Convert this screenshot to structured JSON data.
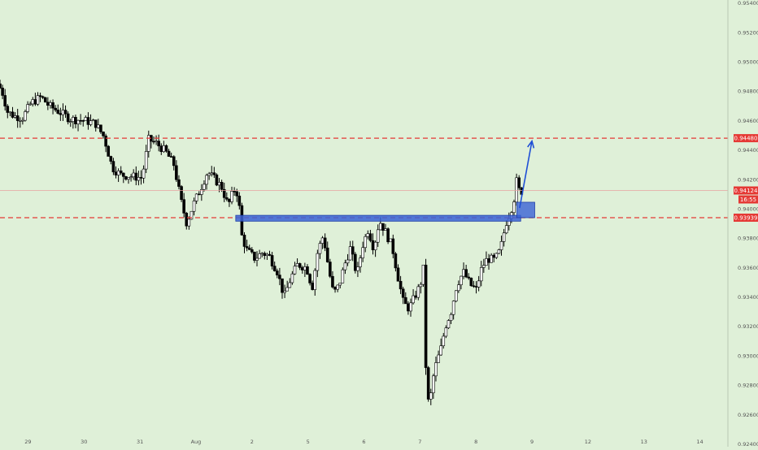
{
  "chart_data": {
    "type": "candlestick",
    "colors": {
      "background": "#dff0d8",
      "candle_up": "#ffffff",
      "candle_down": "#000000",
      "wick": "#000000",
      "resistance_line": "#e53935",
      "support_line": "#e53935",
      "zone": "#3a62d6",
      "arrow": "#1f4fd6",
      "price_badge": "#e53935",
      "time_badge": "#e53935"
    },
    "y_axis": {
      "range": [
        0.9248,
        0.9542
      ],
      "ticks": [
        "0.95400",
        "0.95200",
        "0.95000",
        "0.94800",
        "0.94600",
        "0.94400",
        "0.94200",
        "0.94000",
        "0.93800",
        "0.93600",
        "0.93400",
        "0.93200",
        "0.93000",
        "0.92800",
        "0.92600",
        "0.92400"
      ]
    },
    "x_axis": {
      "ticks": [
        {
          "label": "29",
          "t": 0.5
        },
        {
          "label": "30",
          "t": 1.5
        },
        {
          "label": "31",
          "t": 2.5
        },
        {
          "label": "Aug",
          "t": 3.5
        },
        {
          "label": "2",
          "t": 4.5
        },
        {
          "label": "5",
          "t": 5.5
        },
        {
          "label": "6",
          "t": 6.5
        },
        {
          "label": "7",
          "t": 7.5
        },
        {
          "label": "8",
          "t": 8.5
        },
        {
          "label": "9",
          "t": 9.5
        },
        {
          "label": "12",
          "t": 10.5
        },
        {
          "label": "13",
          "t": 11.5
        },
        {
          "label": "14",
          "t": 12.5
        }
      ]
    },
    "price_labels": {
      "resistance": "0.94480",
      "current": "0.94124",
      "countdown": "16:55",
      "support": "0.93939"
    },
    "levels": {
      "resistance": 0.9448,
      "support": 0.93939,
      "current": 0.94124
    },
    "zone": {
      "t_start": 4.21,
      "t_end": 9.3,
      "y_low": 0.93915,
      "y_high": 0.93955
    },
    "breakout_box": {
      "t_start": 9.23,
      "t_end": 9.55,
      "y_low": 0.93939,
      "y_high": 0.94044
    },
    "arrow": {
      "t_start": 9.28,
      "y_start": 0.94005,
      "t_end": 9.5,
      "y_end": 0.9446
    },
    "price_path": [
      [
        0.0,
        0.9485
      ],
      [
        0.08,
        0.948
      ],
      [
        0.18,
        0.9466
      ],
      [
        0.3,
        0.9463
      ],
      [
        0.45,
        0.9462
      ],
      [
        0.6,
        0.9472
      ],
      [
        0.78,
        0.9476
      ],
      [
        0.92,
        0.947
      ],
      [
        1.1,
        0.9466
      ],
      [
        1.3,
        0.9461
      ],
      [
        1.55,
        0.946
      ],
      [
        1.75,
        0.9458
      ],
      [
        1.9,
        0.9449
      ],
      [
        2.05,
        0.9428
      ],
      [
        2.2,
        0.9423
      ],
      [
        2.4,
        0.9422
      ],
      [
        2.58,
        0.9421
      ],
      [
        2.7,
        0.9447
      ],
      [
        2.82,
        0.9445
      ],
      [
        3.0,
        0.9439
      ],
      [
        3.15,
        0.943
      ],
      [
        3.28,
        0.9405
      ],
      [
        3.38,
        0.939
      ],
      [
        3.5,
        0.9403
      ],
      [
        3.62,
        0.9413
      ],
      [
        3.75,
        0.9425
      ],
      [
        3.88,
        0.942
      ],
      [
        4.0,
        0.9415
      ],
      [
        4.12,
        0.9402
      ],
      [
        4.22,
        0.9413
      ],
      [
        4.3,
        0.941
      ],
      [
        4.36,
        0.9382
      ],
      [
        4.45,
        0.9372
      ],
      [
        4.6,
        0.9366
      ],
      [
        4.72,
        0.937
      ],
      [
        4.85,
        0.9368
      ],
      [
        5.0,
        0.9357
      ],
      [
        5.12,
        0.934
      ],
      [
        5.24,
        0.9353
      ],
      [
        5.36,
        0.9362
      ],
      [
        5.52,
        0.936
      ],
      [
        5.62,
        0.9346
      ],
      [
        5.72,
        0.9371
      ],
      [
        5.82,
        0.9382
      ],
      [
        5.92,
        0.9358
      ],
      [
        6.0,
        0.9342
      ],
      [
        6.1,
        0.9348
      ],
      [
        6.2,
        0.9362
      ],
      [
        6.3,
        0.9373
      ],
      [
        6.42,
        0.9355
      ],
      [
        6.52,
        0.9375
      ],
      [
        6.62,
        0.9386
      ],
      [
        6.72,
        0.9373
      ],
      [
        6.82,
        0.9392
      ],
      [
        6.92,
        0.9385
      ],
      [
        7.05,
        0.9374
      ],
      [
        7.15,
        0.9354
      ],
      [
        7.25,
        0.9336
      ],
      [
        7.35,
        0.9332
      ],
      [
        7.45,
        0.934
      ],
      [
        7.55,
        0.9348
      ],
      [
        7.62,
        0.9362
      ],
      [
        7.66,
        0.927
      ],
      [
        7.72,
        0.9268
      ],
      [
        7.8,
        0.929
      ],
      [
        7.92,
        0.9305
      ],
      [
        8.0,
        0.932
      ],
      [
        8.1,
        0.933
      ],
      [
        8.2,
        0.9348
      ],
      [
        8.32,
        0.9357
      ],
      [
        8.45,
        0.9348
      ],
      [
        8.55,
        0.9345
      ],
      [
        8.65,
        0.936
      ],
      [
        8.75,
        0.9366
      ],
      [
        8.88,
        0.9365
      ],
      [
        8.98,
        0.9372
      ],
      [
        9.08,
        0.939
      ],
      [
        9.16,
        0.9398
      ],
      [
        9.22,
        0.9405
      ],
      [
        9.26,
        0.942
      ],
      [
        9.32,
        0.9412
      ]
    ]
  }
}
